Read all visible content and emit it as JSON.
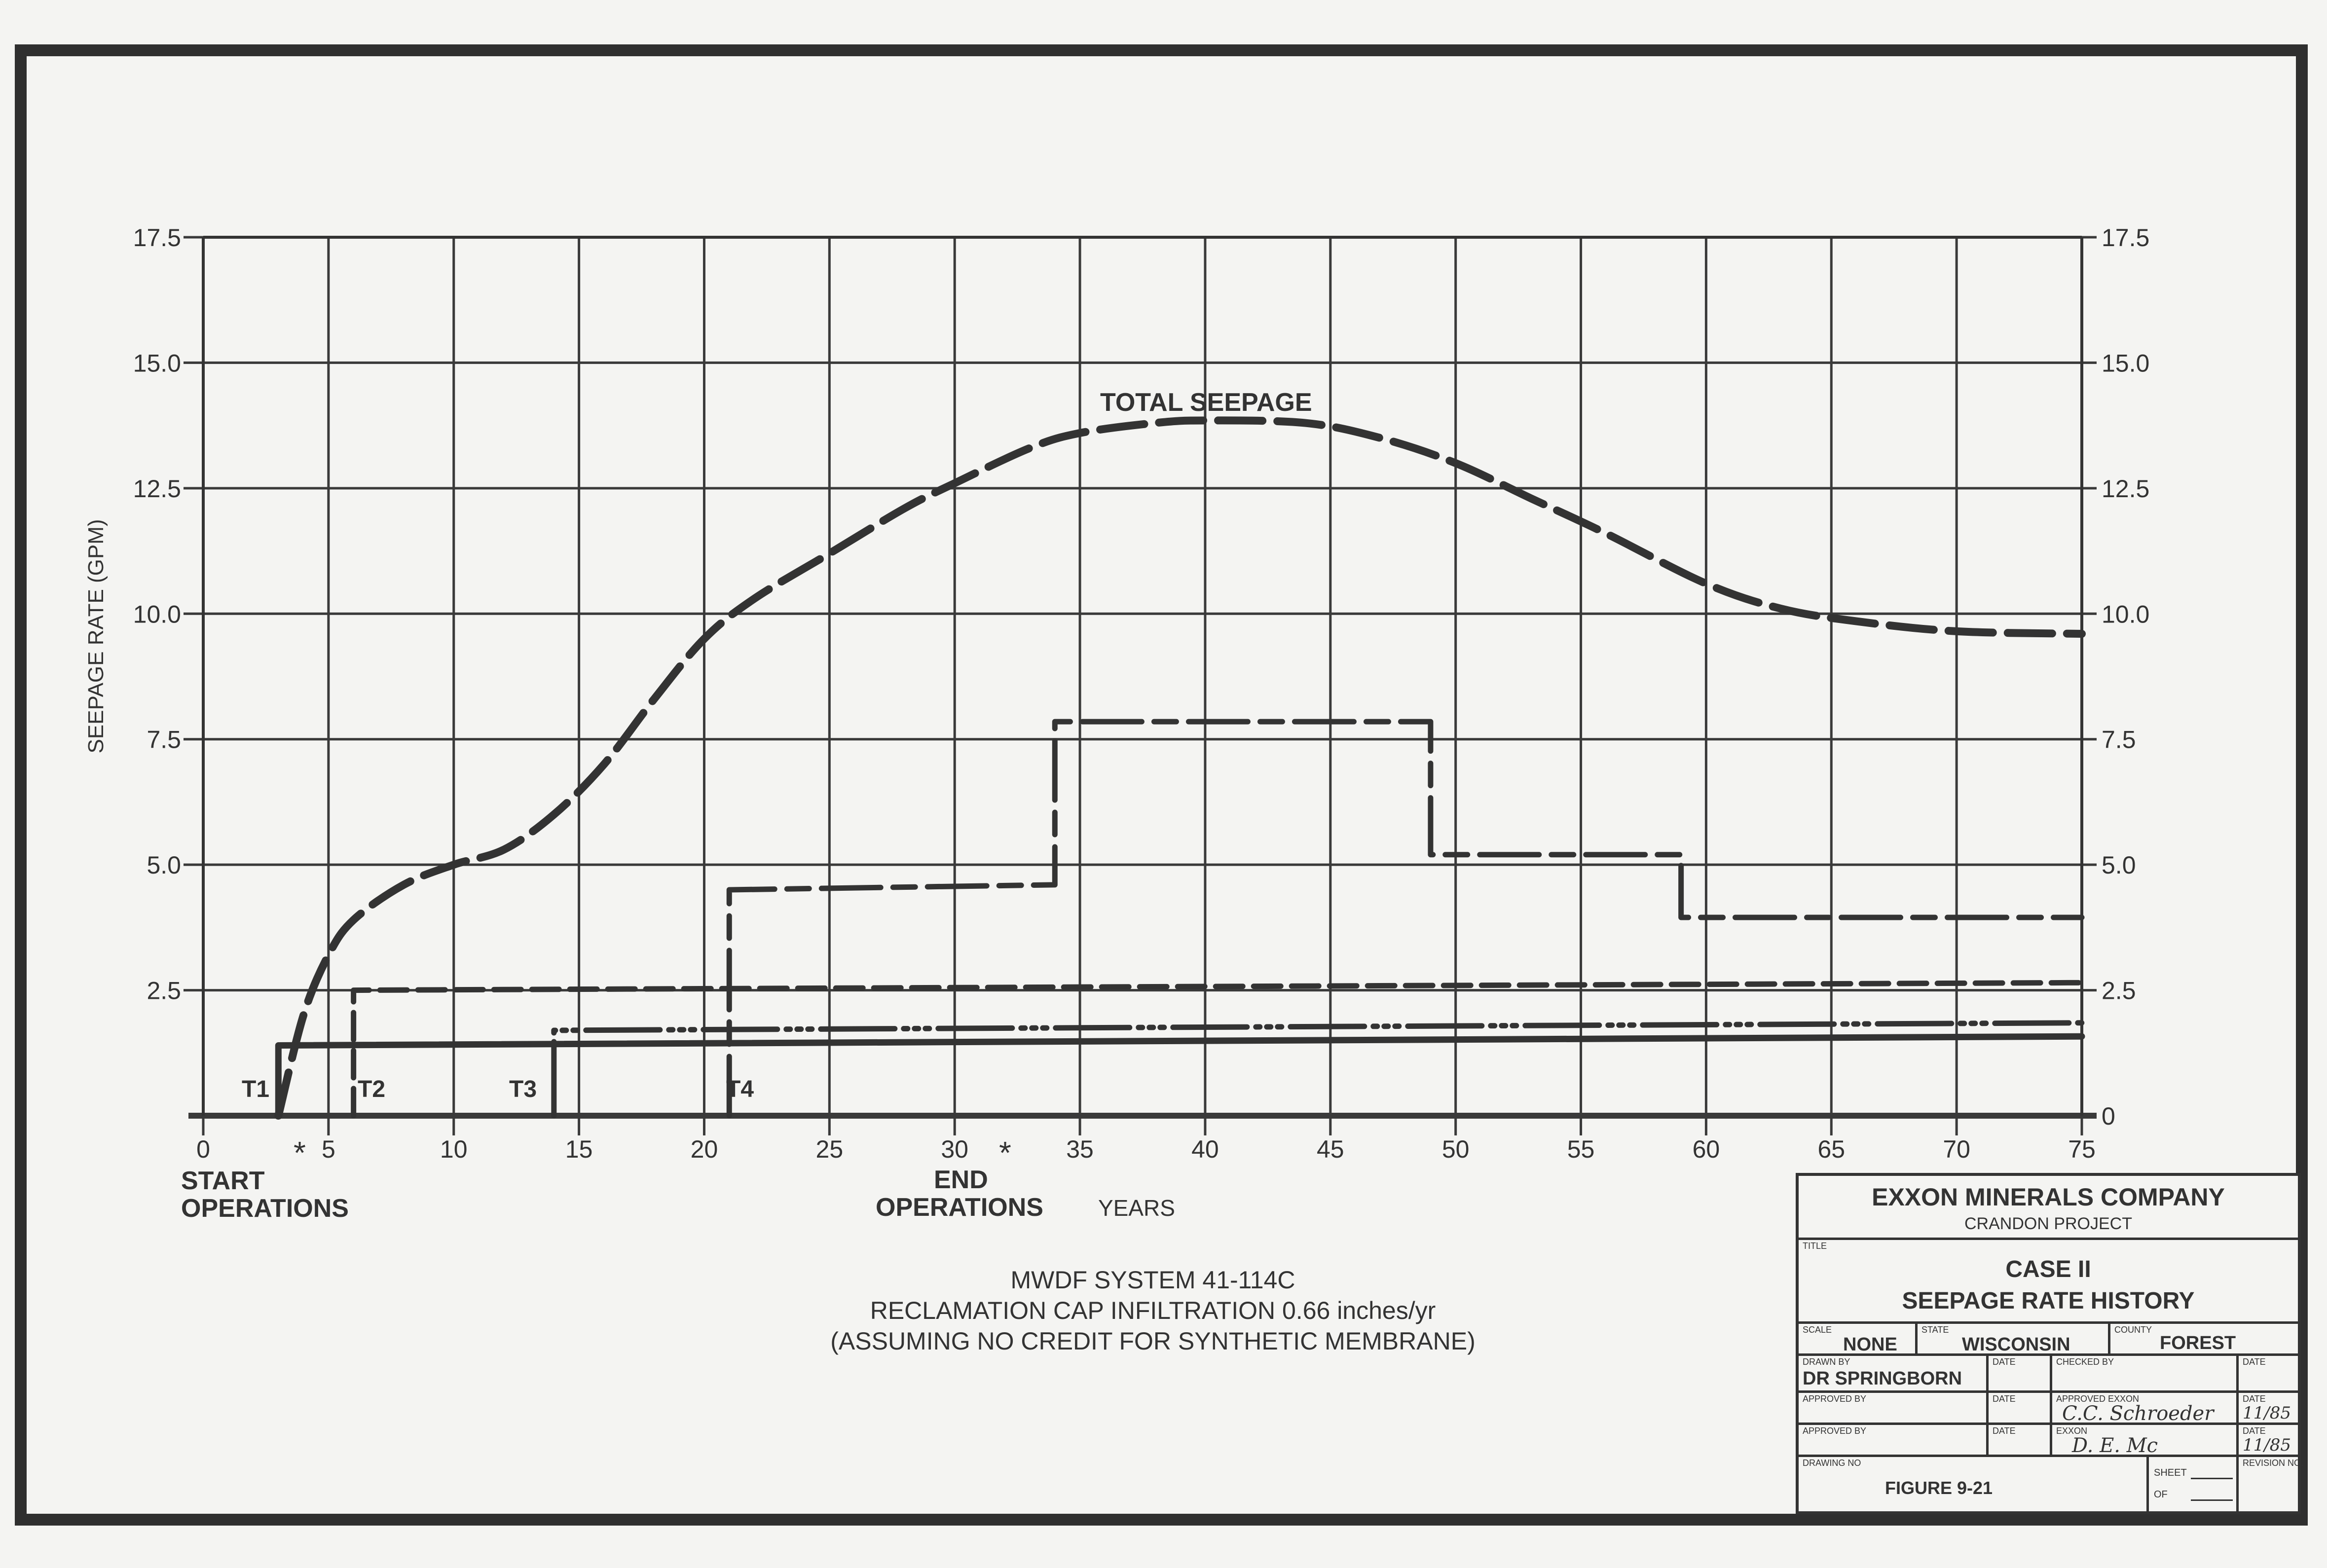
{
  "chart_data": {
    "type": "line",
    "title": "TOTAL SEEPAGE",
    "xlabel": "YEARS",
    "ylabel": "SEEPAGE RATE (GPM)",
    "xlim": [
      0,
      75
    ],
    "ylim": [
      0,
      17.5
    ],
    "grid": true,
    "x_ticks": [
      "0",
      "5",
      "10",
      "15",
      "20",
      "25",
      "30",
      "35",
      "40",
      "45",
      "50",
      "55",
      "60",
      "65",
      "70",
      "75"
    ],
    "y_ticks_left": [
      "2.5",
      "5.0",
      "7.5",
      "10.0",
      "12.5",
      "15.0",
      "17.5"
    ],
    "y_ticks_right": [
      "0",
      "2.5",
      "5.0",
      "7.5",
      "10.0",
      "12.5",
      "15.0",
      "17.5"
    ],
    "series": [
      {
        "name": "TOTAL SEEPAGE",
        "style": "long-dash",
        "points": [
          [
            3,
            0
          ],
          [
            4,
            2
          ],
          [
            5,
            3.2
          ],
          [
            6,
            3.9
          ],
          [
            8,
            4.6
          ],
          [
            10,
            5.0
          ],
          [
            12,
            5.3
          ],
          [
            14,
            6.0
          ],
          [
            16,
            7.0
          ],
          [
            18,
            8.3
          ],
          [
            20,
            9.5
          ],
          [
            22,
            10.3
          ],
          [
            25,
            11.2
          ],
          [
            28,
            12.1
          ],
          [
            30,
            12.6
          ],
          [
            33,
            13.3
          ],
          [
            35,
            13.6
          ],
          [
            38,
            13.8
          ],
          [
            40,
            13.85
          ],
          [
            44,
            13.8
          ],
          [
            47,
            13.5
          ],
          [
            50,
            13.0
          ],
          [
            53,
            12.3
          ],
          [
            56,
            11.6
          ],
          [
            60,
            10.6
          ],
          [
            63,
            10.1
          ],
          [
            66,
            9.85
          ],
          [
            70,
            9.65
          ],
          [
            75,
            9.6
          ]
        ]
      },
      {
        "name": "T1",
        "style": "solid",
        "points": [
          [
            3,
            0
          ],
          [
            3,
            1.4
          ],
          [
            75,
            1.58
          ]
        ]
      },
      {
        "name": "T2",
        "style": "dash",
        "points": [
          [
            6,
            0
          ],
          [
            6,
            2.5
          ],
          [
            75,
            2.65
          ]
        ]
      },
      {
        "name": "T3",
        "style": "dash-dot-dot",
        "points": [
          [
            14,
            0
          ],
          [
            14,
            1.7
          ],
          [
            75,
            1.85
          ]
        ]
      },
      {
        "name": "T4",
        "style": "long-short-dash",
        "points": [
          [
            21,
            0
          ],
          [
            21,
            4.5
          ],
          [
            34,
            4.6
          ],
          [
            34,
            7.85
          ],
          [
            49,
            7.85
          ],
          [
            49,
            5.2
          ],
          [
            59,
            5.2
          ],
          [
            59,
            3.95
          ],
          [
            75,
            3.95
          ]
        ]
      }
    ],
    "annotations": {
      "start_marker": "*",
      "start_label_1": "START",
      "start_label_2": "OPERATIONS",
      "end_marker": "*",
      "end_label_1": "END",
      "end_label_2": "OPERATIONS"
    }
  },
  "notes": {
    "line1": "MWDF SYSTEM 41-114C",
    "line2": "RECLAMATION CAP INFILTRATION 0.66 inches/yr",
    "line3": "(ASSUMING NO CREDIT FOR SYNTHETIC MEMBRANE)"
  },
  "title_block": {
    "company": "EXXON MINERALS COMPANY",
    "project": "CRANDON PROJECT",
    "title_label": "TITLE",
    "title_1": "CASE II",
    "title_2": "SEEPAGE RATE HISTORY",
    "scale_label": "SCALE",
    "scale": "NONE",
    "state_label": "STATE",
    "state": "WISCONSIN",
    "county_label": "COUNTY",
    "county": "FOREST",
    "drawn_by_label": "DRAWN BY",
    "drawn_by": "DR SPRINGBORN",
    "date_label": "DATE",
    "checked_by_label": "CHECKED BY",
    "approved_by_label": "APPROVED BY",
    "approved_exxon_label": "APPROVED EXXON",
    "exxon_label": "EXXON",
    "signature_1": "C.C. Schroeder",
    "signature_1_date": "11/85",
    "signature_2": "D. E. Mc",
    "signature_2_date": "11/85",
    "drawing_no_label": "DRAWING NO",
    "drawing_no": "FIGURE 9-21",
    "sheet_label": "SHEET",
    "of_label": "OF",
    "revision_label": "REVISION NO."
  }
}
